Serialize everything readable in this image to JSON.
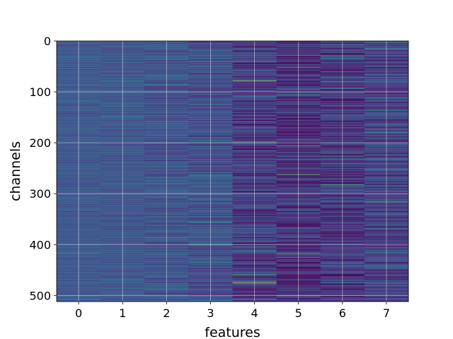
{
  "chart_data": {
    "type": "heatmap",
    "title": "",
    "xlabel": "features",
    "ylabel": "channels",
    "x_ticks": [
      "0",
      "1",
      "2",
      "3",
      "4",
      "5",
      "6",
      "7"
    ],
    "y_ticks": [
      "0",
      "100",
      "200",
      "300",
      "400",
      "500"
    ],
    "y_tick_values": [
      0,
      100,
      200,
      300,
      400,
      500
    ],
    "n_features": 8,
    "n_channels": 512,
    "ylim": [
      512,
      0
    ],
    "grid": true,
    "colormap": "viridis",
    "value_range": [
      0,
      1
    ],
    "colors": {
      "viridis": [
        "#440154",
        "#482475",
        "#414487",
        "#355f8d",
        "#2a788e",
        "#21918c",
        "#22a884",
        "#44bf70",
        "#7ad151",
        "#bddf26",
        "#fde725"
      ],
      "grid": "#ffffff",
      "axis": "#000000"
    },
    "feature_profiles": [
      {
        "feature": "0",
        "mean": 0.26,
        "spread": 0.05
      },
      {
        "feature": "1",
        "mean": 0.25,
        "spread": 0.06
      },
      {
        "feature": "2",
        "mean": 0.24,
        "spread": 0.09
      },
      {
        "feature": "3",
        "mean": 0.22,
        "spread": 0.12
      },
      {
        "feature": "4",
        "mean": 0.15,
        "spread": 0.15
      },
      {
        "feature": "5",
        "mean": 0.12,
        "spread": 0.15
      },
      {
        "feature": "6",
        "mean": 0.14,
        "spread": 0.16
      },
      {
        "feature": "7",
        "mean": 0.18,
        "spread": 0.15
      }
    ],
    "highlights": [
      {
        "feature": 7,
        "channel": 2,
        "value": 0.6
      },
      {
        "feature": 4,
        "channel": 40,
        "value": 0.6
      },
      {
        "feature": 4,
        "channel": 78,
        "value": 0.85
      },
      {
        "feature": 5,
        "channel": 28,
        "value": 0.55
      },
      {
        "feature": 5,
        "channel": 105,
        "value": 0.55
      },
      {
        "feature": 6,
        "channel": 92,
        "value": 0.6
      },
      {
        "feature": 7,
        "channel": 136,
        "value": 0.5
      },
      {
        "feature": 4,
        "channel": 198,
        "value": 0.7
      },
      {
        "feature": 5,
        "channel": 208,
        "value": 0.5
      },
      {
        "feature": 6,
        "channel": 226,
        "value": 0.6
      },
      {
        "feature": 7,
        "channel": 224,
        "value": 0.55
      },
      {
        "feature": 4,
        "channel": 244,
        "value": 0.55
      },
      {
        "feature": 5,
        "channel": 262,
        "value": 0.75
      },
      {
        "feature": 6,
        "channel": 282,
        "value": 0.7
      },
      {
        "feature": 7,
        "channel": 316,
        "value": 0.65
      },
      {
        "feature": 3,
        "channel": 356,
        "value": 0.55
      },
      {
        "feature": 2,
        "channel": 386,
        "value": 0.55
      },
      {
        "feature": 3,
        "channel": 400,
        "value": 0.6
      },
      {
        "feature": 5,
        "channel": 418,
        "value": 0.75
      },
      {
        "feature": 5,
        "channel": 425,
        "value": 0.55
      },
      {
        "feature": 4,
        "channel": 458,
        "value": 0.65
      },
      {
        "feature": 4,
        "channel": 474,
        "value": 0.9
      },
      {
        "feature": 2,
        "channel": 487,
        "value": 0.5
      },
      {
        "feature": 0,
        "channel": 416,
        "value": 0.45
      },
      {
        "feature": 1,
        "channel": 474,
        "value": 0.45
      }
    ]
  }
}
